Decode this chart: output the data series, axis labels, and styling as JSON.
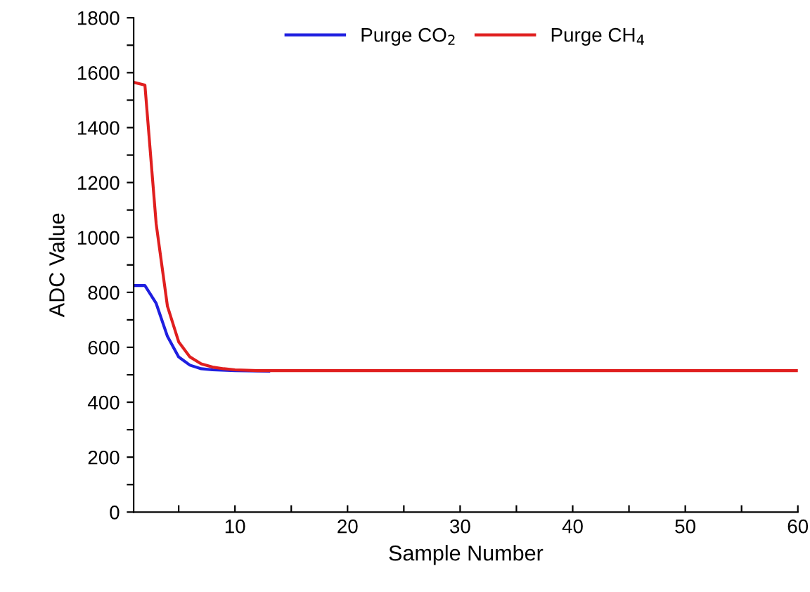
{
  "chart_data": {
    "type": "line",
    "xlabel": "Sample Number",
    "ylabel": "ADC Value",
    "legend": "top",
    "grid": false,
    "marker": "none",
    "line_style": "solid",
    "xlim": [
      1,
      60
    ],
    "ylim": [
      0,
      1800
    ],
    "xticks": [
      {
        "value": 5,
        "label": null
      },
      10,
      {
        "value": 15,
        "label": null
      },
      20,
      {
        "value": 25,
        "label": null
      },
      30,
      {
        "value": 35,
        "label": null
      },
      40,
      {
        "value": 45,
        "label": null
      },
      50,
      {
        "value": 55,
        "label": null
      },
      60
    ],
    "yticks": [
      0,
      {
        "value": 100,
        "label": null
      },
      200,
      {
        "value": 300,
        "label": null
      },
      400,
      {
        "value": 500,
        "label": null
      },
      600,
      {
        "value": 700,
        "label": null
      },
      800,
      {
        "value": 900,
        "label": null
      },
      1000,
      {
        "value": 1100,
        "label": null
      },
      1200,
      {
        "value": 1300,
        "label": null
      },
      1400,
      {
        "value": 1500,
        "label": null
      },
      1600,
      {
        "value": 1700,
        "label": null
      },
      1800
    ],
    "series": [
      {
        "name": "Purge CO$_{2}$",
        "color": "#1f1fe0",
        "x": [
          1,
          2,
          3,
          4,
          5,
          6,
          7,
          8,
          10,
          13
        ],
        "values": [
          825,
          825,
          760,
          640,
          565,
          535,
          522,
          518,
          515,
          513
        ]
      },
      {
        "name": "Purge CH$_{4}$",
        "color": "#e01f1f",
        "x": [
          1,
          2,
          3,
          4,
          5,
          6,
          7,
          8,
          9,
          10,
          12,
          20,
          30,
          40,
          50,
          60
        ],
        "values": [
          1565,
          1555,
          1050,
          750,
          620,
          565,
          540,
          528,
          522,
          518,
          515,
          515,
          515,
          515,
          515,
          515
        ]
      }
    ]
  }
}
